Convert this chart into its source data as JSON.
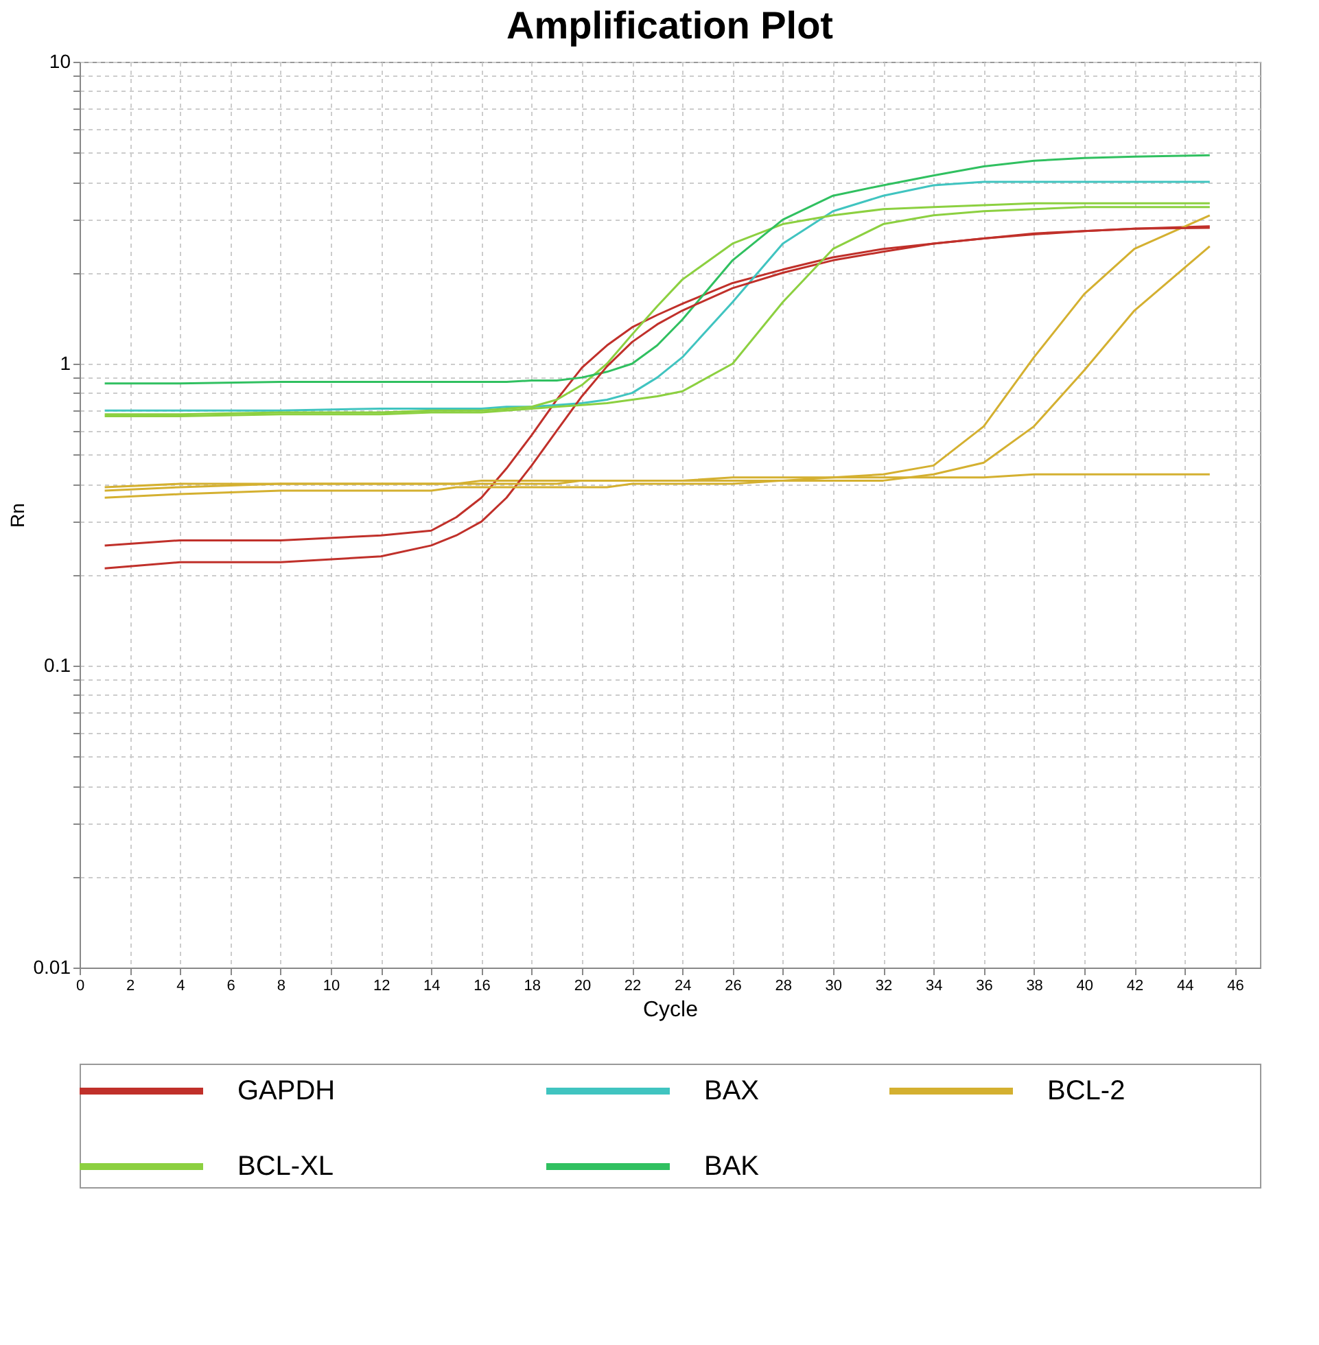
{
  "chart_data": {
    "type": "line",
    "title": "Amplification Plot",
    "xlabel": "Cycle",
    "ylabel": "Rn",
    "log": "y",
    "grid": true,
    "legend": "bottom",
    "line_style": "solid",
    "marker": "none",
    "x": [
      1,
      4,
      8,
      12,
      14,
      15,
      16,
      17,
      18,
      19,
      20,
      21,
      22,
      23,
      24,
      26,
      28,
      30,
      32,
      34,
      36,
      38,
      40,
      42,
      45
    ],
    "xlim": [
      0,
      47
    ],
    "xticks": [
      0,
      2,
      4,
      6,
      8,
      10,
      12,
      14,
      16,
      18,
      20,
      22,
      24,
      26,
      28,
      30,
      32,
      34,
      36,
      38,
      40,
      42,
      44,
      46
    ],
    "ylim": [
      0.01,
      10
    ],
    "yticks": [
      0.01,
      {
        "value": 0.02,
        "label": null
      },
      {
        "value": 0.03,
        "label": null
      },
      {
        "value": 0.04,
        "label": null
      },
      {
        "value": 0.05,
        "label": null
      },
      {
        "value": 0.06,
        "label": null
      },
      {
        "value": 0.07,
        "label": null
      },
      {
        "value": 0.08,
        "label": null
      },
      {
        "value": 0.09,
        "label": null
      },
      0.1,
      {
        "value": 0.2,
        "label": null
      },
      {
        "value": 0.3,
        "label": null
      },
      {
        "value": 0.4,
        "label": null
      },
      {
        "value": 0.5,
        "label": null
      },
      {
        "value": 0.6,
        "label": null
      },
      {
        "value": 0.7,
        "label": null
      },
      {
        "value": 0.8,
        "label": null
      },
      {
        "value": 0.9,
        "label": null
      },
      1,
      {
        "value": 2,
        "label": null
      },
      {
        "value": 3,
        "label": null
      },
      {
        "value": 4,
        "label": null
      },
      {
        "value": 5,
        "label": null
      },
      {
        "value": 6,
        "label": null
      },
      {
        "value": 7,
        "label": null
      },
      {
        "value": 8,
        "label": null
      },
      {
        "value": 9,
        "label": null
      },
      10
    ],
    "series": [
      {
        "name": "GAPDH",
        "color": "#c0302a",
        "values": [
          0.25,
          0.26,
          0.26,
          0.27,
          0.28,
          0.31,
          0.36,
          0.45,
          0.58,
          0.76,
          0.97,
          1.15,
          1.32,
          1.45,
          1.58,
          1.85,
          2.05,
          2.25,
          2.4,
          2.5,
          2.6,
          2.7,
          2.75,
          2.8,
          2.85
        ]
      },
      {
        "name": "BAX",
        "color": "#40c4c0",
        "values": [
          0.7,
          0.7,
          0.7,
          0.71,
          0.71,
          0.71,
          0.71,
          0.72,
          0.72,
          0.73,
          0.74,
          0.76,
          0.8,
          0.9,
          1.05,
          1.6,
          2.5,
          3.2,
          3.6,
          3.9,
          4.0,
          4.0,
          4.0,
          4.0,
          4.0
        ]
      },
      {
        "name": "BCL-2",
        "color": "#d4b030",
        "values": [
          0.39,
          0.4,
          0.4,
          0.4,
          0.4,
          0.4,
          0.41,
          0.41,
          0.41,
          0.41,
          0.41,
          0.41,
          0.41,
          0.41,
          0.41,
          0.42,
          0.42,
          0.42,
          0.43,
          0.46,
          0.62,
          1.05,
          1.7,
          2.4,
          3.1
        ]
      },
      {
        "name": "BCL-XL",
        "color": "#8cd040",
        "values": [
          0.68,
          0.68,
          0.69,
          0.69,
          0.7,
          0.7,
          0.7,
          0.71,
          0.72,
          0.76,
          0.85,
          1.0,
          1.25,
          1.55,
          1.9,
          2.5,
          2.9,
          3.1,
          3.25,
          3.3,
          3.35,
          3.4,
          3.4,
          3.4,
          3.4
        ]
      },
      {
        "name": "BAK",
        "color": "#30c060",
        "values": [
          0.86,
          0.86,
          0.87,
          0.87,
          0.87,
          0.87,
          0.87,
          0.87,
          0.88,
          0.88,
          0.9,
          0.94,
          1.0,
          1.15,
          1.4,
          2.2,
          3.0,
          3.6,
          3.9,
          4.2,
          4.5,
          4.7,
          4.8,
          4.85,
          4.9
        ]
      },
      {
        "color": "#c0302a",
        "values": [
          0.21,
          0.22,
          0.22,
          0.23,
          0.25,
          0.27,
          0.3,
          0.36,
          0.46,
          0.6,
          0.78,
          0.98,
          1.18,
          1.35,
          1.5,
          1.78,
          2.0,
          2.2,
          2.35,
          2.5,
          2.6,
          2.68,
          2.75,
          2.8,
          2.82
        ]
      },
      {
        "color": "#8cd040",
        "values": [
          0.67,
          0.67,
          0.68,
          0.68,
          0.69,
          0.69,
          0.69,
          0.7,
          0.71,
          0.72,
          0.73,
          0.74,
          0.76,
          0.78,
          0.81,
          1.0,
          1.6,
          2.4,
          2.9,
          3.1,
          3.2,
          3.25,
          3.3,
          3.3,
          3.3
        ]
      },
      {
        "color": "#d4b030",
        "values": [
          0.36,
          0.37,
          0.38,
          0.38,
          0.38,
          0.39,
          0.39,
          0.39,
          0.39,
          0.39,
          0.39,
          0.39,
          0.4,
          0.4,
          0.4,
          0.4,
          0.41,
          0.41,
          0.41,
          0.43,
          0.47,
          0.62,
          0.95,
          1.5,
          2.45
        ]
      },
      {
        "color": "#d4b030",
        "values": [
          0.38,
          0.39,
          0.4,
          0.4,
          0.4,
          0.4,
          0.4,
          0.4,
          0.4,
          0.4,
          0.41,
          0.41,
          0.41,
          0.41,
          0.41,
          0.41,
          0.41,
          0.42,
          0.42,
          0.42,
          0.42,
          0.43,
          0.43,
          0.43,
          0.43
        ]
      }
    ]
  }
}
